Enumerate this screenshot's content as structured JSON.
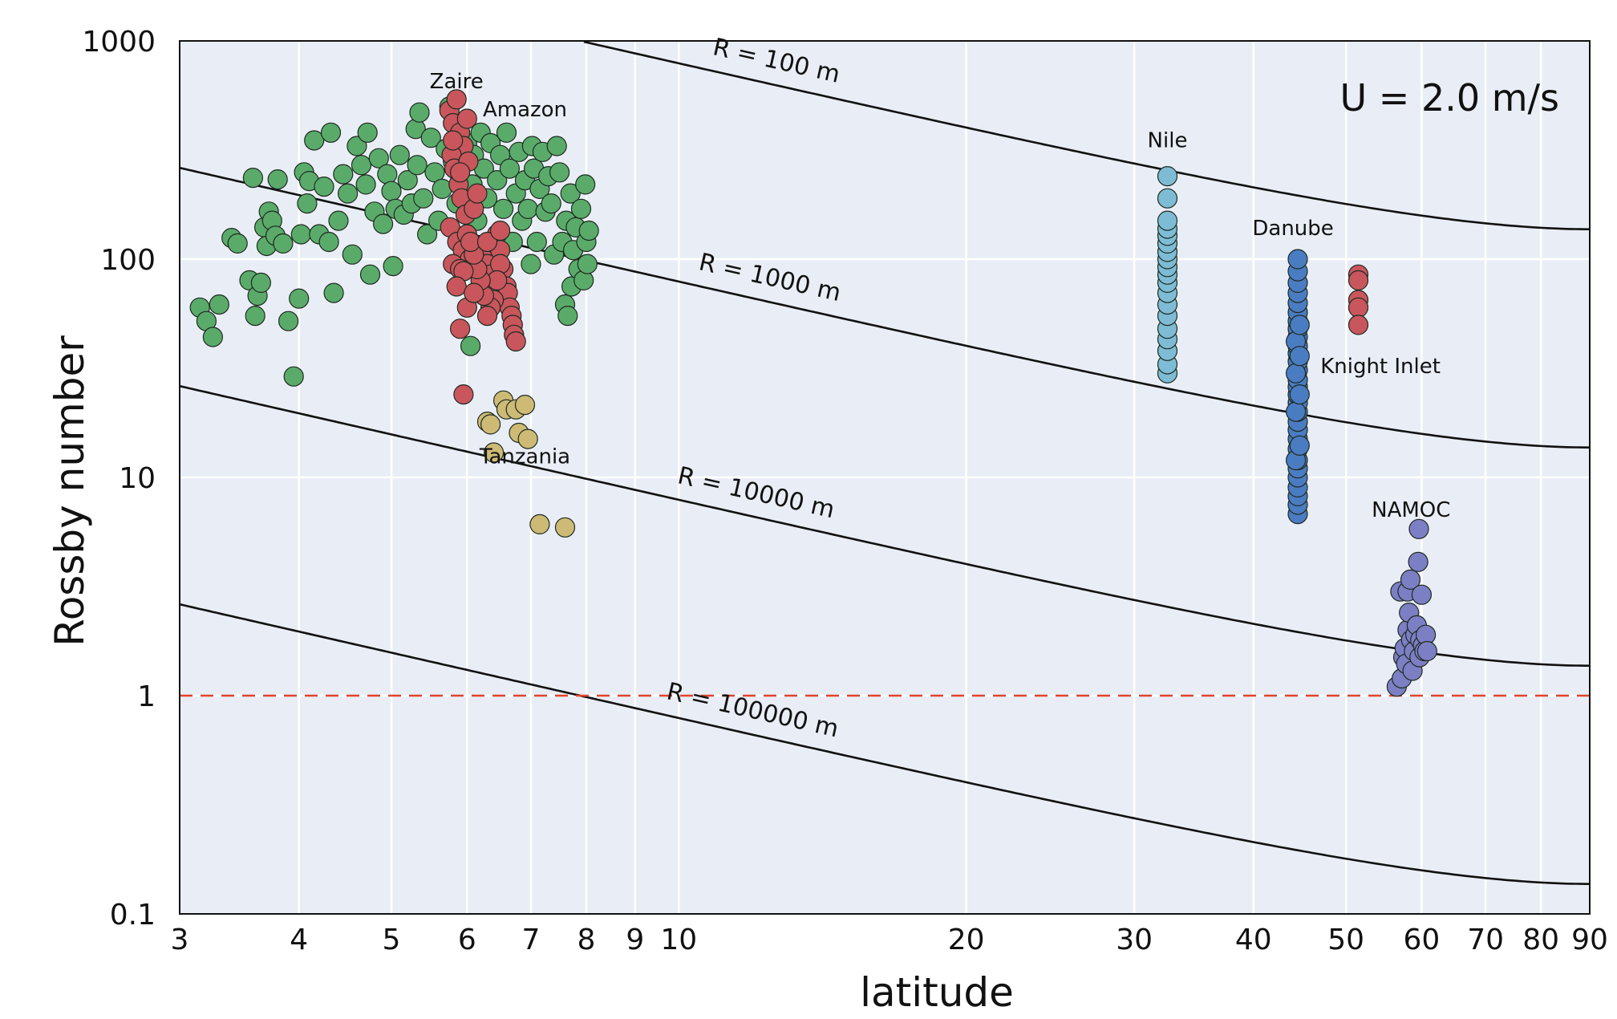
{
  "chart_data": {
    "type": "scatter",
    "xlabel": "latitude",
    "ylabel": "Rossby number",
    "x_scale": "log",
    "y_scale": "log",
    "xlim": [
      3,
      90
    ],
    "ylim": [
      0.1,
      1000
    ],
    "x_ticks": [
      3,
      4,
      5,
      6,
      7,
      8,
      9,
      10,
      20,
      30,
      40,
      50,
      60,
      70,
      80,
      90
    ],
    "y_ticks": [
      0.1,
      1,
      10,
      100,
      1000
    ],
    "y_tick_labels": [
      "0.1",
      "1",
      "10",
      "100",
      "1000"
    ],
    "grid": true,
    "background": "#e9edf5",
    "annotation": "U = 2.0 m/s",
    "reference_line": {
      "y": 1,
      "style": "dashed",
      "color": "#e0452e"
    },
    "curves": [
      {
        "label": "R = 100 m",
        "R": 100
      },
      {
        "label": "R = 1000 m",
        "R": 1000
      },
      {
        "label": "R = 10000 m",
        "R": 10000
      },
      {
        "label": "R = 100000 m",
        "R": 100000
      }
    ],
    "series": [
      {
        "name": "Amazon",
        "color": "#5aab6a",
        "points": [
          [
            3.15,
            60
          ],
          [
            3.2,
            52
          ],
          [
            3.25,
            44
          ],
          [
            3.3,
            62
          ],
          [
            3.4,
            125
          ],
          [
            3.45,
            118
          ],
          [
            3.55,
            80
          ],
          [
            3.58,
            236
          ],
          [
            3.6,
            55
          ],
          [
            3.62,
            68
          ],
          [
            3.65,
            78
          ],
          [
            3.68,
            140
          ],
          [
            3.7,
            115
          ],
          [
            3.72,
            165
          ],
          [
            3.75,
            150
          ],
          [
            3.78,
            128
          ],
          [
            3.8,
            232
          ],
          [
            3.85,
            118
          ],
          [
            3.9,
            52
          ],
          [
            3.95,
            29
          ],
          [
            4.0,
            66
          ],
          [
            4.02,
            130
          ],
          [
            4.05,
            250
          ],
          [
            4.08,
            180
          ],
          [
            4.1,
            228
          ],
          [
            4.15,
            350
          ],
          [
            4.2,
            130
          ],
          [
            4.25,
            215
          ],
          [
            4.3,
            120
          ],
          [
            4.32,
            380
          ],
          [
            4.35,
            70
          ],
          [
            4.4,
            150
          ],
          [
            4.45,
            245
          ],
          [
            4.5,
            200
          ],
          [
            4.55,
            105
          ],
          [
            4.6,
            330
          ],
          [
            4.65,
            270
          ],
          [
            4.7,
            220
          ],
          [
            4.72,
            380
          ],
          [
            4.75,
            85
          ],
          [
            4.8,
            165
          ],
          [
            4.85,
            290
          ],
          [
            4.9,
            145
          ],
          [
            4.95,
            245
          ],
          [
            5.0,
            205
          ],
          [
            5.02,
            93
          ],
          [
            5.05,
            170
          ],
          [
            5.1,
            300
          ],
          [
            5.15,
            160
          ],
          [
            5.2,
            230
          ],
          [
            5.25,
            180
          ],
          [
            5.3,
            395
          ],
          [
            5.32,
            270
          ],
          [
            5.35,
            470
          ],
          [
            5.4,
            190
          ],
          [
            5.45,
            130
          ],
          [
            5.5,
            360
          ],
          [
            5.55,
            250
          ],
          [
            5.6,
            150
          ],
          [
            5.65,
            210
          ],
          [
            5.7,
            320
          ],
          [
            5.75,
            500
          ],
          [
            5.8,
            280
          ],
          [
            5.85,
            180
          ],
          [
            5.9,
            240
          ],
          [
            5.95,
            125
          ],
          [
            6.0,
            340
          ],
          [
            6.05,
            40
          ],
          [
            6.08,
            220
          ],
          [
            6.1,
            300
          ],
          [
            6.15,
            150
          ],
          [
            6.2,
            380
          ],
          [
            6.25,
            260
          ],
          [
            6.3,
            190
          ],
          [
            6.35,
            340
          ],
          [
            6.4,
            120
          ],
          [
            6.45,
            230
          ],
          [
            6.5,
            300
          ],
          [
            6.55,
            170
          ],
          [
            6.6,
            380
          ],
          [
            6.65,
            260
          ],
          [
            6.7,
            120
          ],
          [
            6.75,
            200
          ],
          [
            6.8,
            310
          ],
          [
            6.85,
            150
          ],
          [
            6.9,
            230
          ],
          [
            6.95,
            170
          ],
          [
            7.0,
            95
          ],
          [
            7.02,
            330
          ],
          [
            7.05,
            260
          ],
          [
            7.1,
            120
          ],
          [
            7.15,
            210
          ],
          [
            7.2,
            310
          ],
          [
            7.25,
            165
          ],
          [
            7.3,
            240
          ],
          [
            7.35,
            180
          ],
          [
            7.4,
            105
          ],
          [
            7.45,
            330
          ],
          [
            7.5,
            250
          ],
          [
            7.55,
            120
          ],
          [
            7.6,
            62
          ],
          [
            7.62,
            150
          ],
          [
            7.65,
            55
          ],
          [
            7.7,
            200
          ],
          [
            7.72,
            75
          ],
          [
            7.75,
            110
          ],
          [
            7.8,
            140
          ],
          [
            7.85,
            90
          ],
          [
            7.9,
            170
          ],
          [
            7.95,
            80
          ],
          [
            7.98,
            220
          ],
          [
            8.0,
            120
          ],
          [
            8.02,
            95
          ],
          [
            8.05,
            135
          ]
        ]
      },
      {
        "name": "Zaire",
        "color": "#c9565c",
        "points": [
          [
            5.75,
            480
          ],
          [
            5.8,
            420
          ],
          [
            5.85,
            540
          ],
          [
            5.9,
            380
          ],
          [
            5.95,
            330
          ],
          [
            6.0,
            440
          ],
          [
            5.78,
            300
          ],
          [
            5.82,
            260
          ],
          [
            5.88,
            220
          ],
          [
            5.92,
            190
          ],
          [
            5.98,
            160
          ],
          [
            6.02,
            280
          ],
          [
            5.76,
            140
          ],
          [
            5.86,
            120
          ],
          [
            5.94,
            110
          ],
          [
            6.04,
            100
          ],
          [
            5.8,
            95
          ],
          [
            5.9,
            90
          ],
          [
            6.0,
            130
          ],
          [
            6.1,
            170
          ],
          [
            6.15,
            200
          ],
          [
            6.2,
            115
          ],
          [
            6.25,
            100
          ],
          [
            6.3,
            95
          ],
          [
            6.35,
            85
          ],
          [
            6.4,
            75
          ],
          [
            6.45,
            130
          ],
          [
            6.5,
            110
          ],
          [
            6.55,
            90
          ],
          [
            6.6,
            75
          ],
          [
            6.62,
            70
          ],
          [
            6.65,
            60
          ],
          [
            6.68,
            55
          ],
          [
            6.7,
            50
          ],
          [
            6.72,
            45
          ],
          [
            6.75,
            42
          ],
          [
            6.5,
            95
          ],
          [
            6.45,
            80
          ],
          [
            6.4,
            65
          ],
          [
            6.35,
            60
          ],
          [
            6.3,
            55
          ],
          [
            6.25,
            68
          ],
          [
            6.2,
            80
          ],
          [
            6.15,
            90
          ],
          [
            6.1,
            105
          ],
          [
            6.05,
            120
          ],
          [
            5.95,
            88
          ],
          [
            5.85,
            75
          ],
          [
            5.8,
            350
          ],
          [
            5.9,
            250
          ],
          [
            6.0,
            60
          ],
          [
            6.1,
            70
          ],
          [
            5.9,
            48
          ],
          [
            5.95,
            24
          ],
          [
            6.3,
            120
          ],
          [
            6.5,
            135
          ]
        ]
      },
      {
        "name": "Tanzania",
        "color": "#cdbb75",
        "points": [
          [
            6.3,
            18
          ],
          [
            6.35,
            17.5
          ],
          [
            6.4,
            13
          ],
          [
            6.55,
            22.5
          ],
          [
            6.6,
            20.5
          ],
          [
            6.75,
            20.5
          ],
          [
            6.8,
            16
          ],
          [
            6.9,
            21.5
          ],
          [
            6.95,
            15
          ],
          [
            7.15,
            6.1
          ],
          [
            7.6,
            5.9
          ]
        ]
      },
      {
        "name": "Nile",
        "color": "#7dbcd4",
        "points": [
          [
            32.5,
            30
          ],
          [
            32.5,
            33
          ],
          [
            32.5,
            38
          ],
          [
            32.5,
            43
          ],
          [
            32.5,
            48
          ],
          [
            32.5,
            55
          ],
          [
            32.5,
            62
          ],
          [
            32.5,
            70
          ],
          [
            32.5,
            78
          ],
          [
            32.5,
            85
          ],
          [
            32.5,
            92
          ],
          [
            32.5,
            100
          ],
          [
            32.5,
            108
          ],
          [
            32.5,
            118
          ],
          [
            32.5,
            128
          ],
          [
            32.5,
            138
          ],
          [
            32.5,
            150
          ],
          [
            32.5,
            190
          ],
          [
            32.5,
            240
          ]
        ]
      },
      {
        "name": "Danube",
        "color": "#4a7cc2",
        "points": [
          [
            44.5,
            6.8
          ],
          [
            44.5,
            7.5
          ],
          [
            44.5,
            8.2
          ],
          [
            44.5,
            9.0
          ],
          [
            44.5,
            10
          ],
          [
            44.5,
            11
          ],
          [
            44.5,
            12
          ],
          [
            44.5,
            13.5
          ],
          [
            44.5,
            15
          ],
          [
            44.5,
            16.5
          ],
          [
            44.5,
            18
          ],
          [
            44.5,
            20
          ],
          [
            44.5,
            22
          ],
          [
            44.5,
            24
          ],
          [
            44.5,
            26
          ],
          [
            44.5,
            28
          ],
          [
            44.5,
            31
          ],
          [
            44.5,
            34
          ],
          [
            44.5,
            37
          ],
          [
            44.5,
            40
          ],
          [
            44.5,
            44
          ],
          [
            44.5,
            48
          ],
          [
            44.5,
            52
          ],
          [
            44.5,
            57
          ],
          [
            44.5,
            63
          ],
          [
            44.5,
            70
          ],
          [
            44.5,
            78
          ],
          [
            44.5,
            88
          ],
          [
            44.5,
            100
          ],
          [
            44.3,
            12
          ],
          [
            44.3,
            20
          ],
          [
            44.3,
            30
          ],
          [
            44.3,
            42
          ],
          [
            44.7,
            14
          ],
          [
            44.7,
            24
          ],
          [
            44.7,
            36
          ],
          [
            44.7,
            50
          ]
        ]
      },
      {
        "name": "Knight Inlet",
        "color": "#c9565c",
        "points": [
          [
            51.5,
            85
          ],
          [
            51.5,
            80
          ],
          [
            51.5,
            65
          ],
          [
            51.5,
            60
          ],
          [
            51.5,
            50
          ]
        ]
      },
      {
        "name": "NAMOC",
        "color": "#7c7fc4",
        "points": [
          [
            56.5,
            1.1
          ],
          [
            57.0,
            3.0
          ],
          [
            57.2,
            1.2
          ],
          [
            57.4,
            1.5
          ],
          [
            57.6,
            1.65
          ],
          [
            57.8,
            1.4
          ],
          [
            58.0,
            2.0
          ],
          [
            58.0,
            3.0
          ],
          [
            58.2,
            2.4
          ],
          [
            58.4,
            3.4
          ],
          [
            58.5,
            1.8
          ],
          [
            58.7,
            1.3
          ],
          [
            58.9,
            1.6
          ],
          [
            59.1,
            1.9
          ],
          [
            59.3,
            2.1
          ],
          [
            59.5,
            4.1
          ],
          [
            59.6,
            5.8
          ],
          [
            59.7,
            1.5
          ],
          [
            59.8,
            1.8
          ],
          [
            60.0,
            2.9
          ],
          [
            60.2,
            1.7
          ],
          [
            60.4,
            1.6
          ],
          [
            60.6,
            1.9
          ],
          [
            60.8,
            1.6
          ]
        ]
      }
    ]
  }
}
